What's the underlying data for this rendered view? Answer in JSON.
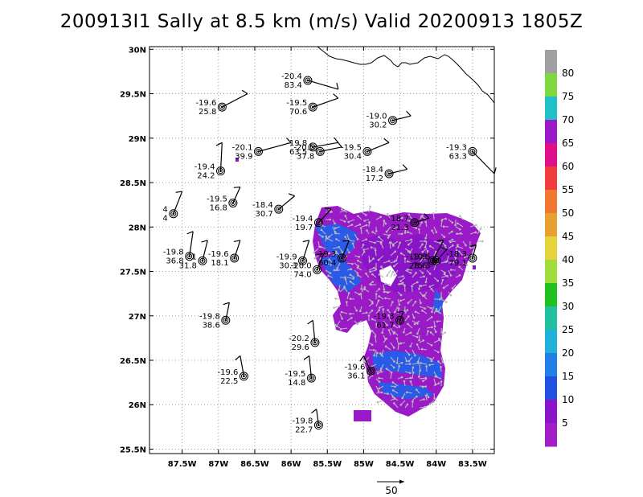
{
  "title": "200913I1 Sally at 8.5 km (m/s) Valid 20200913 1805Z",
  "axes": {
    "lon_ticks": [
      {
        "v": -87.5,
        "label": "87.5W"
      },
      {
        "v": -87,
        "label": "87W"
      },
      {
        "v": -86.5,
        "label": "86.5W"
      },
      {
        "v": -86,
        "label": "86W"
      },
      {
        "v": -85.5,
        "label": "85.5W"
      },
      {
        "v": -85,
        "label": "85W"
      },
      {
        "v": -84.5,
        "label": "84.5W"
      },
      {
        "v": -84,
        "label": "84W"
      },
      {
        "v": -83.5,
        "label": "83.5W"
      }
    ],
    "lat_ticks": [
      {
        "v": 30,
        "label": "30N"
      },
      {
        "v": 29.5,
        "label": "29.5N"
      },
      {
        "v": 29,
        "label": "29N"
      },
      {
        "v": 28.5,
        "label": "28.5N"
      },
      {
        "v": 28,
        "label": "28N"
      },
      {
        "v": 27.5,
        "label": "27.5N"
      },
      {
        "v": 27,
        "label": "27N"
      },
      {
        "v": 26.5,
        "label": "26.5N"
      },
      {
        "v": 26,
        "label": "26N"
      },
      {
        "v": 25.5,
        "label": "25.5N"
      }
    ],
    "lon_range": [
      -87.95,
      -83.2
    ],
    "lat_range": [
      25.45,
      30.03
    ],
    "grid": true,
    "grid_style": "dotted"
  },
  "colorbar": {
    "labels": [
      "80",
      "75",
      "70",
      "65",
      "60",
      "55",
      "50",
      "45",
      "40",
      "35",
      "30",
      "25",
      "20",
      "15",
      "10",
      "5"
    ],
    "colors": [
      "#a0a0a0",
      "#80d840",
      "#20c0c8",
      "#9a1ac8",
      "#e0108a",
      "#f03c3c",
      "#f07830",
      "#e8a030",
      "#e6d23a",
      "#a0dc3c",
      "#20c020",
      "#20c0a0",
      "#20b0d8",
      "#2080e8",
      "#2050e0",
      "#8a14c8",
      "#a21cc8"
    ]
  },
  "vector_key": {
    "label": "50"
  },
  "obs": [
    {
      "lon": -85.77,
      "lat": 29.65,
      "temp": "-20.4",
      "val": "83.4",
      "barb": [
        -85.35,
        29.55
      ]
    },
    {
      "lon": -86.95,
      "lat": 29.35,
      "temp": "-19.6",
      "val": "25.8",
      "barb": [
        -86.6,
        29.5
      ]
    },
    {
      "lon": -85.7,
      "lat": 29.35,
      "temp": "-19.5",
      "val": "70.6",
      "barb": [
        -85.35,
        29.45
      ]
    },
    {
      "lon": -84.6,
      "lat": 29.2,
      "temp": "-19.0",
      "val": "30.2",
      "barb": [
        -84.35,
        29.25
      ]
    },
    {
      "lon": -86.45,
      "lat": 28.85,
      "temp": "-20.1",
      "val": "39.9",
      "barb": [
        -86.0,
        28.95
      ]
    },
    {
      "lon": -85.7,
      "lat": 28.9,
      "temp": "-19.8",
      "val": "63.5",
      "barb": [
        -85.35,
        28.95
      ]
    },
    {
      "lon": -85.6,
      "lat": 28.85,
      "temp": "-20.5",
      "val": "37.8",
      "barb": [
        -85.3,
        28.9
      ]
    },
    {
      "lon": -84.95,
      "lat": 28.85,
      "temp": "-19.5",
      "val": "30.4",
      "barb": [
        -84.65,
        28.95
      ]
    },
    {
      "lon": -83.5,
      "lat": 28.85,
      "temp": "-19.3",
      "val": "63.3",
      "barb": [
        -83.2,
        28.6
      ]
    },
    {
      "lon": -86.97,
      "lat": 28.63,
      "temp": "-19.4",
      "val": "24.2",
      "barb": [
        -86.95,
        28.95
      ]
    },
    {
      "lon": -84.65,
      "lat": 28.6,
      "temp": "-18.4",
      "val": "17.2",
      "barb": [
        -84.4,
        28.65
      ]
    },
    {
      "lon": -86.8,
      "lat": 28.27,
      "temp": "-19.5",
      "val": "16.8",
      "barb": [
        -86.7,
        28.45
      ]
    },
    {
      "lon": -86.17,
      "lat": 28.2,
      "temp": "-18.4",
      "val": "30.7",
      "barb": [
        -85.95,
        28.35
      ]
    },
    {
      "lon": -87.62,
      "lat": 28.15,
      "temp": "4",
      "val": "4",
      "barb": [
        -87.5,
        28.4
      ]
    },
    {
      "lon": -85.62,
      "lat": 28.05,
      "temp": "-19.4",
      "val": "19.7",
      "barb": [
        -85.45,
        28.2
      ]
    },
    {
      "lon": -84.3,
      "lat": 28.05,
      "temp": "-18.7",
      "val": "21.3",
      "barb": [
        -84.1,
        28.1
      ]
    },
    {
      "lon": -87.4,
      "lat": 27.67,
      "temp": "-19.8",
      "val": "36.8",
      "barb": [
        -87.35,
        27.95
      ]
    },
    {
      "lon": -87.22,
      "lat": 27.62,
      "temp": "1",
      "val": "31.8",
      "barb": [
        -87.15,
        27.85
      ]
    },
    {
      "lon": -86.78,
      "lat": 27.65,
      "temp": "-19.6",
      "val": "18.1",
      "barb": [
        -86.7,
        27.85
      ]
    },
    {
      "lon": -85.84,
      "lat": 27.62,
      "temp": "-19.9",
      "val": "30.3",
      "barb": [
        -85.75,
        27.85
      ]
    },
    {
      "lon": -85.64,
      "lat": 27.52,
      "temp": "-20.0",
      "val": "74.0",
      "barb": [
        -85.55,
        27.7
      ]
    },
    {
      "lon": -85.3,
      "lat": 27.65,
      "temp": "-19.3",
      "val": "60.4",
      "barb": [
        -85.2,
        27.85
      ]
    },
    {
      "lon": -84.05,
      "lat": 27.62,
      "temp": "-19.8",
      "val": "28.6",
      "barb": [
        -83.9,
        27.85
      ]
    },
    {
      "lon": -84.0,
      "lat": 27.62,
      "temp": "-19.5",
      "val": "75.5",
      "barb": [
        -83.85,
        27.75
      ]
    },
    {
      "lon": -83.5,
      "lat": 27.65,
      "temp": "-18.3",
      "val": "79.1",
      "barb": [
        -83.45,
        27.8
      ]
    },
    {
      "lon": -84.5,
      "lat": 26.95,
      "temp": "-19.3",
      "val": "61.7",
      "barb": [
        -84.45,
        27.05
      ]
    },
    {
      "lon": -86.9,
      "lat": 26.95,
      "temp": "-19.8",
      "val": "38.6",
      "barb": [
        -86.85,
        27.15
      ]
    },
    {
      "lon": -85.67,
      "lat": 26.7,
      "temp": "-20.2",
      "val": "29.6",
      "barb": [
        -85.7,
        26.95
      ]
    },
    {
      "lon": -86.65,
      "lat": 26.32,
      "temp": "-19.6",
      "val": "22.5",
      "barb": [
        -86.7,
        26.55
      ]
    },
    {
      "lon": -85.72,
      "lat": 26.3,
      "temp": "-19.5",
      "val": "14.8",
      "barb": [
        -85.75,
        26.55
      ]
    },
    {
      "lon": -84.9,
      "lat": 26.38,
      "temp": "-19.6",
      "val": "36.1",
      "barb": [
        -85.0,
        26.55
      ]
    },
    {
      "lon": -85.62,
      "lat": 25.77,
      "temp": "-19.8",
      "val": "22.7",
      "barb": [
        -85.65,
        25.95
      ]
    }
  ]
}
